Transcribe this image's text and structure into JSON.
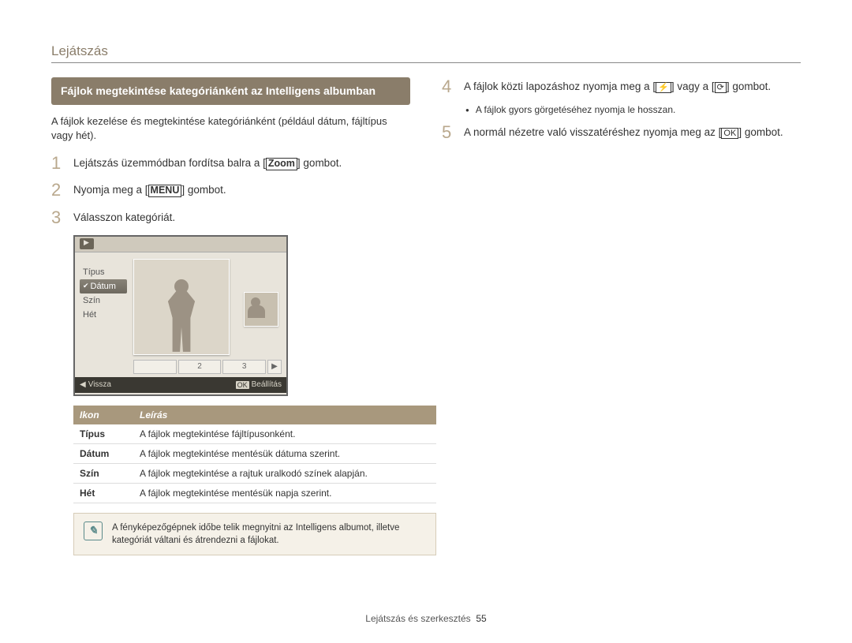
{
  "header_title": "Lejátszás",
  "section_title": "Fájlok megtekintése kategóriánként az Intelligens albumban",
  "intro": "A fájlok kezelése és megtekintése kategóriánként (például dátum, fájltípus vagy hét).",
  "steps_left": [
    {
      "num": "1",
      "html": [
        "Lejátszás üzemmódban fordítsa balra a [",
        {
          "box": "Zoom"
        },
        "] gombot."
      ]
    },
    {
      "num": "2",
      "html": [
        "Nyomja meg a [",
        {
          "box": "MENU"
        },
        "] gombot."
      ]
    },
    {
      "num": "3",
      "html": [
        "Válasszon kategóriát."
      ]
    }
  ],
  "lcd": {
    "menu": [
      "Típus",
      "Dátum",
      "Szín",
      "Hét"
    ],
    "selected_index": 1,
    "pager": [
      "",
      "2",
      "3"
    ],
    "bottom_back": "Vissza",
    "bottom_set": "Beállítás"
  },
  "table": {
    "head_icon": "Ikon",
    "head_desc": "Leírás",
    "rows": [
      {
        "k": "Típus",
        "v": "A fájlok megtekintése fájltípusonként."
      },
      {
        "k": "Dátum",
        "v": "A fájlok megtekintése mentésük dátuma szerint."
      },
      {
        "k": "Szín",
        "v": "A fájlok megtekintése a rajtuk uralkodó színek alapján."
      },
      {
        "k": "Hét",
        "v": "A fájlok megtekintése mentésük napja szerint."
      }
    ]
  },
  "note_text": "A fényképezőgépnek időbe telik megnyitni az Intelligens albumot, illetve kategóriát váltani és átrendezni a fájlokat.",
  "steps_right": [
    {
      "num": "4",
      "html": [
        "A fájlok közti lapozáshoz nyomja meg a [",
        {
          "icon": "⚡"
        },
        "] vagy a [",
        {
          "icon": "⟳"
        },
        "] gombot."
      ]
    },
    {
      "num": "5",
      "html": [
        "A normál nézetre való visszatéréshez nyomja meg az [",
        {
          "icon": "OK"
        },
        "] gombot."
      ]
    }
  ],
  "bullet_right": "A fájlok gyors görgetéséhez nyomja le hosszan.",
  "footer_text": "Lejátszás és szerkesztés",
  "footer_page": "55"
}
